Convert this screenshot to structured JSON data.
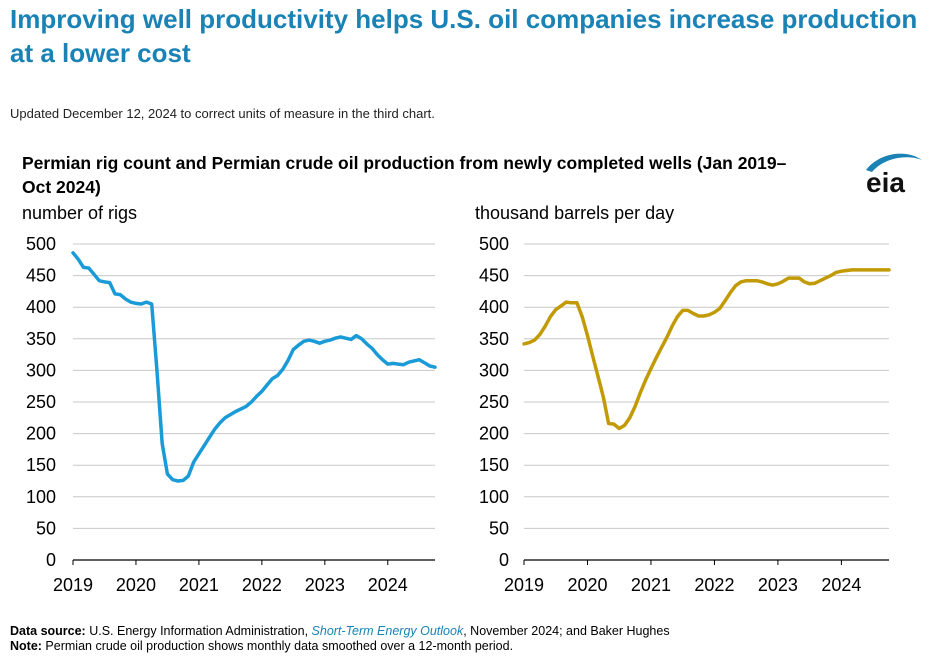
{
  "headline": "Improving well productivity helps U.S. oil companies increase production at a lower cost",
  "update_note": "Updated December 12, 2024 to correct units of measure in the third chart.",
  "chart_title": "Permian rig count and Permian crude oil production from newly completed wells (Jan 2019–Oct 2024)",
  "logo_text": "eia",
  "footer": {
    "source_label": "Data source:",
    "source_text_1": " U.S. Energy Information Administration, ",
    "source_link": "Short-Term Energy Outlook",
    "source_text_2": ", November 2024; and Baker Hughes",
    "note_label": "Note:",
    "note_text": " Permian crude oil production shows monthly data smoothed over a 12-month period."
  },
  "colors": {
    "rigs_line": "#1a9bd7",
    "production_line": "#c19a06",
    "headline": "#1a82b4",
    "gridline": "#c8c8c8"
  },
  "chart_data": [
    {
      "type": "line",
      "ylabel": "number of rigs",
      "ylim": [
        0,
        500
      ],
      "yticks": [
        "500",
        "450",
        "400",
        "350",
        "300",
        "250",
        "200",
        "150",
        "100",
        "50",
        "0"
      ],
      "xticks": [
        "2019",
        "2020",
        "2021",
        "2022",
        "2023",
        "2024"
      ],
      "xlim": [
        "2019-01",
        "2024-10"
      ],
      "grid": true,
      "series": [
        {
          "x": [
            "2019-01",
            "2019-02",
            "2019-03",
            "2019-04",
            "2019-05",
            "2019-06",
            "2019-07",
            "2019-08",
            "2019-09",
            "2019-10",
            "2019-11",
            "2019-12",
            "2020-01",
            "2020-02",
            "2020-03",
            "2020-04",
            "2020-05",
            "2020-06",
            "2020-07",
            "2020-08",
            "2020-09",
            "2020-10",
            "2020-11",
            "2020-12",
            "2021-01",
            "2021-02",
            "2021-03",
            "2021-04",
            "2021-05",
            "2021-06",
            "2021-07",
            "2021-08",
            "2021-09",
            "2021-10",
            "2021-11",
            "2021-12",
            "2022-01",
            "2022-02",
            "2022-03",
            "2022-04",
            "2022-05",
            "2022-06",
            "2022-07",
            "2022-08",
            "2022-09",
            "2022-10",
            "2022-11",
            "2022-12",
            "2023-01",
            "2023-02",
            "2023-03",
            "2023-04",
            "2023-05",
            "2023-06",
            "2023-07",
            "2023-08",
            "2023-09",
            "2023-10",
            "2023-11",
            "2023-12",
            "2024-01",
            "2024-02",
            "2024-03",
            "2024-04",
            "2024-05",
            "2024-06",
            "2024-07",
            "2024-08",
            "2024-09",
            "2024-10"
          ],
          "values": [
            486,
            476,
            463,
            462,
            452,
            442,
            440,
            439,
            421,
            420,
            413,
            408,
            406,
            405,
            408,
            405,
            301,
            184,
            136,
            127,
            125,
            126,
            133,
            155,
            168,
            181,
            194,
            207,
            217,
            225,
            230,
            235,
            239,
            243,
            250,
            259,
            267,
            277,
            287,
            292,
            302,
            316,
            333,
            340,
            346,
            348,
            346,
            343,
            346,
            348,
            351,
            353,
            351,
            349,
            355,
            350,
            342,
            335,
            325,
            317,
            310,
            311,
            310,
            309,
            313,
            315,
            317,
            312,
            307,
            305
          ]
        }
      ]
    },
    {
      "type": "line",
      "ylabel": "thousand barrels per day",
      "ylim": [
        0,
        500
      ],
      "yticks": [
        "500",
        "450",
        "400",
        "350",
        "300",
        "250",
        "200",
        "150",
        "100",
        "50",
        "0"
      ],
      "xticks": [
        "2019",
        "2020",
        "2021",
        "2022",
        "2023",
        "2024"
      ],
      "xlim": [
        "2019-01",
        "2024-10"
      ],
      "grid": true,
      "series": [
        {
          "x": [
            "2019-01",
            "2019-02",
            "2019-03",
            "2019-04",
            "2019-05",
            "2019-06",
            "2019-07",
            "2019-08",
            "2019-09",
            "2019-10",
            "2019-11",
            "2019-12",
            "2020-01",
            "2020-02",
            "2020-03",
            "2020-04",
            "2020-05",
            "2020-06",
            "2020-07",
            "2020-08",
            "2020-09",
            "2020-10",
            "2020-11",
            "2020-12",
            "2021-01",
            "2021-02",
            "2021-03",
            "2021-04",
            "2021-05",
            "2021-06",
            "2021-07",
            "2021-08",
            "2021-09",
            "2021-10",
            "2021-11",
            "2021-12",
            "2022-01",
            "2022-02",
            "2022-03",
            "2022-04",
            "2022-05",
            "2022-06",
            "2022-07",
            "2022-08",
            "2022-09",
            "2022-10",
            "2022-11",
            "2022-12",
            "2023-01",
            "2023-02",
            "2023-03",
            "2023-04",
            "2023-05",
            "2023-06",
            "2023-07",
            "2023-08",
            "2023-09",
            "2023-10",
            "2023-11",
            "2023-12",
            "2024-01",
            "2024-02",
            "2024-03",
            "2024-04",
            "2024-05",
            "2024-06",
            "2024-07",
            "2024-08",
            "2024-09",
            "2024-10"
          ],
          "values": [
            342,
            344,
            348,
            357,
            370,
            385,
            396,
            402,
            408,
            407,
            407,
            385,
            355,
            322,
            290,
            258,
            216,
            215,
            208,
            213,
            225,
            243,
            265,
            285,
            303,
            320,
            336,
            352,
            370,
            385,
            395,
            395,
            390,
            386,
            386,
            388,
            392,
            398,
            410,
            423,
            434,
            440,
            442,
            442,
            442,
            440,
            437,
            435,
            437,
            441,
            446,
            446,
            446,
            440,
            437,
            438,
            442,
            446,
            450,
            455,
            457,
            458,
            459,
            459,
            459,
            459,
            459,
            459,
            459,
            459
          ]
        }
      ]
    }
  ]
}
